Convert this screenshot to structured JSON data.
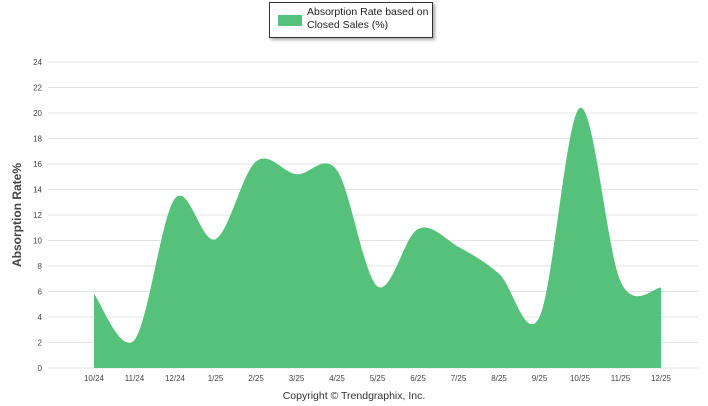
{
  "chart_data": {
    "type": "area",
    "x": [
      "10/24",
      "11/24",
      "12/24",
      "1/25",
      "2/25",
      "3/25",
      "4/25",
      "5/25",
      "6/25",
      "7/25",
      "8/25",
      "9/25",
      "10/25",
      "11/25",
      "12/25"
    ],
    "series": [
      {
        "name": "Absorption Rate based on Closed Sales (%)",
        "values": [
          5.8,
          2.2,
          13.3,
          10.1,
          16.2,
          15.2,
          15.5,
          6.4,
          10.9,
          9.5,
          7.4,
          4.0,
          20.4,
          6.8,
          6.3
        ]
      }
    ],
    "ylabel": "Absorption Rate%",
    "ylim": [
      0,
      24
    ],
    "yticks": [
      "0",
      "2",
      "4",
      "6",
      "8",
      "10",
      "12",
      "14",
      "16",
      "18",
      "20",
      "22",
      "24"
    ],
    "grid": true,
    "legend": "top-center",
    "color": "#56c17a"
  },
  "footer": {
    "copyright": "Copyright © Trendgraphix, Inc."
  }
}
